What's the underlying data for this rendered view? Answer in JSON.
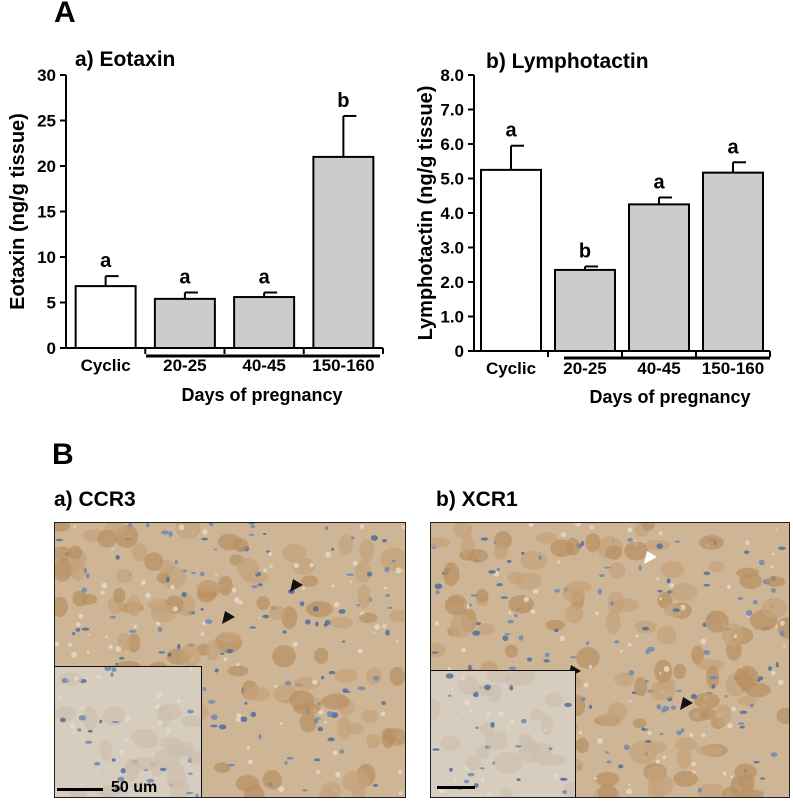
{
  "figure": {
    "panel_a_label": "A",
    "panel_b_label": "B"
  },
  "chart_data": [
    {
      "type": "bar",
      "title": "a) Eotaxin",
      "ylabel": "Eotaxin (ng/g tissue)",
      "xlabel": "Days of pregnancy",
      "categories": [
        "Cyclic",
        "20-25",
        "40-45",
        "150-160"
      ],
      "values": [
        6.8,
        5.4,
        5.6,
        21.0
      ],
      "errors": [
        1.1,
        0.7,
        0.5,
        4.5
      ],
      "significance_letters": [
        "a",
        "a",
        "a",
        "b"
      ],
      "ylim": [
        0,
        30
      ],
      "yticks": [
        "0",
        "5",
        "10",
        "15",
        "20",
        "25",
        "30"
      ],
      "bar_colors": [
        "#ffffff",
        "#cccccc",
        "#cccccc",
        "#cccccc"
      ],
      "grid": false
    },
    {
      "type": "bar",
      "title": "b) Lymphotactin",
      "ylabel": "Lymphotactin (ng/g tissue)",
      "xlabel": "Days of pregnancy",
      "categories": [
        "Cyclic",
        "20-25",
        "40-45",
        "150-160"
      ],
      "values": [
        5.25,
        2.35,
        4.25,
        5.17
      ],
      "errors": [
        0.7,
        0.1,
        0.2,
        0.3
      ],
      "significance_letters": [
        "a",
        "b",
        "a",
        "a"
      ],
      "ylim": [
        0,
        8
      ],
      "yticks": [
        "0",
        "1.0",
        "2.0",
        "3.0",
        "4.0",
        "5.0",
        "6.0",
        "7.0",
        "8.0"
      ],
      "bar_colors": [
        "#ffffff",
        "#cccccc",
        "#cccccc",
        "#cccccc"
      ],
      "grid": false
    }
  ],
  "micrographs": [
    {
      "title": "a) CCR3",
      "scale_label": "50 um"
    },
    {
      "title": "b) XCR1",
      "scale_label": ""
    }
  ]
}
